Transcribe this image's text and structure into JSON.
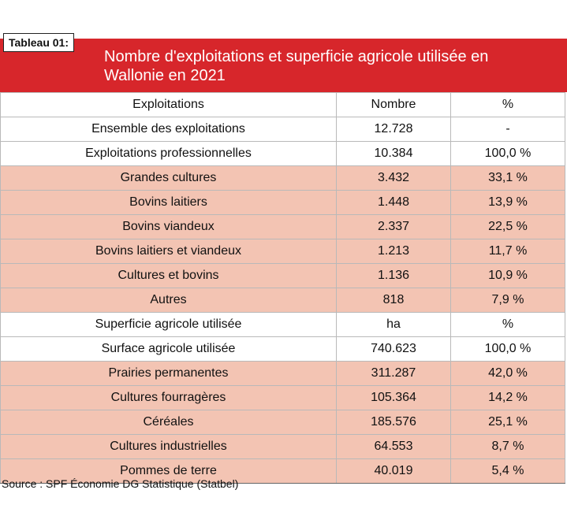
{
  "table_label": "Tableau 01:",
  "title": "Nombre d'exploitations et superficie agricole utilisée en Wallonie en 2021",
  "rows": [
    {
      "label": "Exploitations",
      "value": "Nombre",
      "pct": "%",
      "style": "white"
    },
    {
      "label": "Ensemble des exploitations",
      "value": "12.728",
      "pct": "-",
      "style": "white"
    },
    {
      "label": "Exploitations professionnelles",
      "value": "10.384",
      "pct": "100,0 %",
      "style": "white"
    },
    {
      "label": "Grandes cultures",
      "value": "3.432",
      "pct": "33,1 %",
      "style": "pink"
    },
    {
      "label": "Bovins laitiers",
      "value": "1.448",
      "pct": "13,9 %",
      "style": "pink"
    },
    {
      "label": "Bovins viandeux",
      "value": "2.337",
      "pct": "22,5 %",
      "style": "pink"
    },
    {
      "label": "Bovins laitiers et viandeux",
      "value": "1.213",
      "pct": "11,7 %",
      "style": "pink"
    },
    {
      "label": "Cultures et bovins",
      "value": "1.136",
      "pct": "10,9 %",
      "style": "pink"
    },
    {
      "label": "Autres",
      "value": "818",
      "pct": "7,9 %",
      "style": "pink"
    },
    {
      "label": "Superficie agricole utilisée",
      "value": "ha",
      "pct": "%",
      "style": "white"
    },
    {
      "label": "Surface agricole utilisée",
      "value": "740.623",
      "pct": "100,0 %",
      "style": "white"
    },
    {
      "label": "Prairies permanentes",
      "value": "311.287",
      "pct": "42,0 %",
      "style": "pink"
    },
    {
      "label": "Cultures fourragères",
      "value": "105.364",
      "pct": "14,2 %",
      "style": "pink"
    },
    {
      "label": "Céréales",
      "value": "185.576",
      "pct": "25,1 %",
      "style": "pink"
    },
    {
      "label": "Cultures industrielles",
      "value": "64.553",
      "pct": "8,7 %",
      "style": "pink"
    },
    {
      "label": "Pommes de terre",
      "value": "40.019",
      "pct": "5,4 %",
      "style": "pink"
    }
  ],
  "source": "Source : SPF Économie DG Statistique (Statbel)"
}
